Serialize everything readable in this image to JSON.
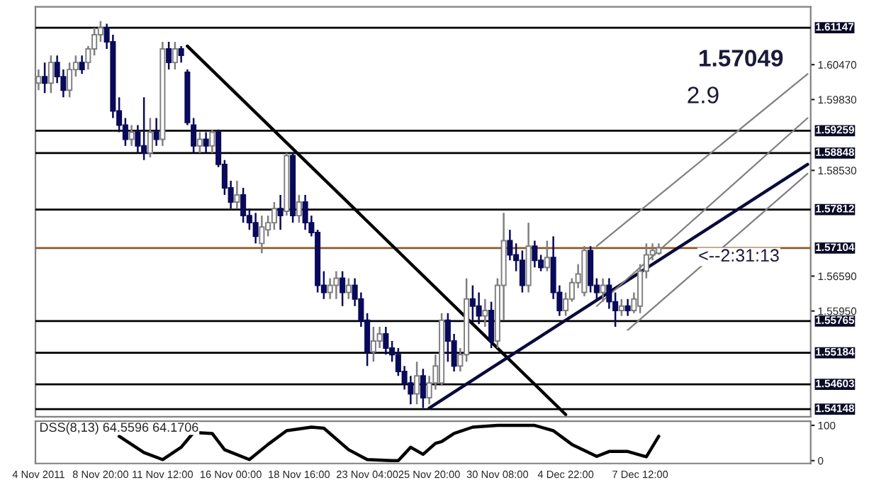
{
  "chart_data": [
    {
      "type": "candlestick",
      "categories": [
        null,
        null,
        null,
        null,
        null,
        null,
        null,
        null,
        null,
        null,
        null,
        null,
        null,
        null,
        null,
        null,
        null,
        null,
        null,
        null,
        null,
        null,
        null,
        null,
        null,
        null,
        null,
        null,
        null,
        null,
        null,
        null,
        null,
        null,
        null,
        null,
        null,
        null,
        null,
        null,
        null,
        null,
        null,
        null,
        null,
        null,
        null,
        null,
        null,
        null,
        null,
        null,
        null,
        null,
        null,
        null,
        null,
        null,
        null,
        null,
        null,
        null,
        null,
        null,
        null,
        null,
        null,
        null,
        null,
        null,
        null,
        null,
        null,
        null,
        null,
        null,
        null,
        null,
        null,
        null,
        null,
        null,
        null,
        null,
        null,
        null,
        null,
        null,
        null,
        null,
        null,
        null,
        null,
        null,
        null,
        null,
        null,
        null,
        null,
        null,
        null,
        null,
        null,
        null,
        null,
        null,
        null,
        null,
        null,
        null,
        null,
        null,
        null,
        null,
        null,
        null,
        null,
        null,
        null,
        null,
        null,
        null,
        null,
        null,
        null
      ],
      "ohlc": [
        [
          1.6013,
          1.6038,
          1.6,
          1.6025
        ],
        [
          1.6025,
          1.6051,
          1.5995,
          1.6013
        ],
        [
          1.6013,
          1.6064,
          1.5995,
          1.6051
        ],
        [
          1.6051,
          1.6064,
          1.6013,
          1.6025
        ],
        [
          1.6025,
          1.6038,
          1.5987,
          1.6
        ],
        [
          1.6,
          1.6051,
          1.5987,
          1.6038
        ],
        [
          1.6038,
          1.6064,
          1.6025,
          1.6051
        ],
        [
          1.6051,
          1.6064,
          1.603,
          1.6038
        ],
        [
          1.6051,
          1.6081,
          1.6038,
          1.6076
        ],
        [
          1.6076,
          1.6115,
          1.6064,
          1.6102
        ],
        [
          1.6102,
          1.6127,
          1.6089,
          1.6115
        ],
        [
          1.6115,
          1.6122,
          1.6076,
          1.6089
        ],
        [
          1.6089,
          1.6102,
          1.5949,
          1.5962
        ],
        [
          1.5962,
          1.5987,
          1.5923,
          1.5936
        ],
        [
          1.5936,
          1.5949,
          1.5898,
          1.591
        ],
        [
          1.591,
          1.5936,
          1.5898,
          1.5923
        ],
        [
          1.5923,
          1.5936,
          1.5885,
          1.5898
        ],
        [
          1.5898,
          1.5987,
          1.5872,
          1.5885
        ],
        [
          1.5885,
          1.5949,
          1.5877,
          1.5923
        ],
        [
          1.5923,
          1.5949,
          1.5898,
          1.591
        ],
        [
          1.591,
          1.6089,
          1.5898,
          1.6076
        ],
        [
          1.6076,
          1.6089,
          1.6038,
          1.6051
        ],
        [
          1.6051,
          1.6089,
          1.6038,
          1.6076
        ],
        [
          1.6076,
          1.6081,
          1.6051,
          1.6064
        ],
        [
          1.6033,
          1.6038,
          1.5936,
          1.5941
        ],
        [
          1.5936,
          1.5949,
          1.5885,
          1.5898
        ],
        [
          1.5898,
          1.5923,
          1.5885,
          1.591
        ],
        [
          1.591,
          1.5923,
          1.5885,
          1.5898
        ],
        [
          1.5898,
          1.5928,
          1.5885,
          1.5923
        ],
        [
          1.5923,
          1.5928,
          1.5859,
          1.5864
        ],
        [
          1.5864,
          1.5872,
          1.5808,
          1.5821
        ],
        [
          1.5821,
          1.5834,
          1.5783,
          1.5795
        ],
        [
          1.5795,
          1.5834,
          1.5783,
          1.5808
        ],
        [
          1.5808,
          1.5821,
          1.5757,
          1.577
        ],
        [
          1.577,
          1.5783,
          1.5744,
          1.5757
        ],
        [
          1.5757,
          1.5775,
          1.5719,
          1.5732
        ],
        [
          1.5719,
          1.577,
          1.5701,
          1.5749
        ],
        [
          1.5744,
          1.577,
          1.5732,
          1.5757
        ],
        [
          1.5757,
          1.5795,
          1.5744,
          1.5783
        ],
        [
          1.5783,
          1.5808,
          1.5744,
          1.577
        ],
        [
          1.5778,
          1.5885,
          1.577,
          1.588
        ],
        [
          1.588,
          1.5885,
          1.5757,
          1.577
        ],
        [
          1.577,
          1.5808,
          1.5757,
          1.5795
        ],
        [
          1.5795,
          1.5808,
          1.5744,
          1.5757
        ],
        [
          1.5757,
          1.577,
          1.5732,
          1.5739
        ],
        [
          1.5739,
          1.5744,
          1.5629,
          1.5642
        ],
        [
          1.5642,
          1.5668,
          1.5617,
          1.5629
        ],
        [
          1.5629,
          1.5655,
          1.5617,
          1.5642
        ],
        [
          1.5642,
          1.5668,
          1.5617,
          1.5655
        ],
        [
          1.5655,
          1.5668,
          1.5604,
          1.5629
        ],
        [
          1.5629,
          1.5655,
          1.5617,
          1.5642
        ],
        [
          1.5642,
          1.5655,
          1.5604,
          1.5617
        ],
        [
          1.5617,
          1.5629,
          1.5566,
          1.5578
        ],
        [
          1.5578,
          1.5591,
          1.5494,
          1.552
        ],
        [
          1.552,
          1.5566,
          1.5502,
          1.554
        ],
        [
          1.554,
          1.5566,
          1.5527,
          1.5553
        ],
        [
          1.5553,
          1.5566,
          1.5515,
          1.5527
        ],
        [
          1.5527,
          1.554,
          1.5502,
          1.5515
        ],
        [
          1.5515,
          1.5527,
          1.5476,
          1.5484
        ],
        [
          1.5484,
          1.5494,
          1.5451,
          1.5463
        ],
        [
          1.5463,
          1.5476,
          1.5424,
          1.5443
        ],
        [
          1.5443,
          1.5502,
          1.5424,
          1.5476
        ],
        [
          1.5476,
          1.5489,
          1.5417,
          1.5436
        ],
        [
          1.5436,
          1.5476,
          1.5424,
          1.5463
        ],
        [
          1.5463,
          1.5515,
          1.5451,
          1.5494
        ],
        [
          1.5463,
          1.5591,
          1.5458,
          1.5578
        ],
        [
          1.5578,
          1.5591,
          1.5502,
          1.554
        ],
        [
          1.554,
          1.5553,
          1.5484,
          1.5494
        ],
        [
          1.5494,
          1.5527,
          1.5484,
          1.5515
        ],
        [
          1.5515,
          1.5655,
          1.5502,
          1.5617
        ],
        [
          1.5617,
          1.5642,
          1.5578,
          1.5604
        ],
        [
          1.5604,
          1.5629,
          1.5571,
          1.5586
        ],
        [
          1.5586,
          1.5617,
          1.5566,
          1.5596
        ],
        [
          1.5596,
          1.5612,
          1.5527,
          1.554
        ],
        [
          1.554,
          1.5655,
          1.5527,
          1.5642
        ],
        [
          1.5642,
          1.5775,
          1.5578,
          1.5724
        ],
        [
          1.5724,
          1.5744,
          1.5688,
          1.5698
        ],
        [
          1.5698,
          1.5719,
          1.5668,
          1.5688
        ],
        [
          1.5688,
          1.5706,
          1.5629,
          1.5642
        ],
        [
          1.5642,
          1.5757,
          1.5629,
          1.5714
        ],
        [
          1.5714,
          1.5724,
          1.5675,
          1.5688
        ],
        [
          1.5688,
          1.5698,
          1.5668,
          1.5675
        ],
        [
          1.5675,
          1.5724,
          1.5668,
          1.5693
        ],
        [
          1.5693,
          1.5732,
          1.5617,
          1.5629
        ],
        [
          1.5629,
          1.5642,
          1.5586,
          1.5596
        ],
        [
          1.5596,
          1.5629,
          1.5586,
          1.5617
        ],
        [
          1.5617,
          1.5655,
          1.5612,
          1.5647
        ],
        [
          1.5647,
          1.5681,
          1.5637,
          1.5663
        ],
        [
          1.5629,
          1.5714,
          1.5622,
          1.5706
        ],
        [
          1.5706,
          1.5714,
          1.5629,
          1.5642
        ],
        [
          1.5642,
          1.5655,
          1.5617,
          1.5629
        ],
        [
          1.5629,
          1.5655,
          1.5612,
          1.5642
        ],
        [
          1.5642,
          1.5655,
          1.5599,
          1.5612
        ],
        [
          1.5612,
          1.5629,
          1.5566,
          1.5596
        ],
        [
          1.5596,
          1.5617,
          1.5586,
          1.5604
        ],
        [
          1.5604,
          1.5617,
          1.5586,
          1.5596
        ],
        [
          1.5596,
          1.5629,
          1.5591,
          1.5617
        ],
        [
          1.5604,
          1.5681,
          1.5591,
          1.5668
        ],
        [
          1.5668,
          1.5719,
          1.5655,
          1.5698
        ],
        [
          1.5698,
          1.5719,
          1.5688,
          1.5706
        ],
        [
          1.5701,
          1.5719,
          1.5698,
          1.5711
        ],
        null,
        null,
        null,
        null,
        null,
        null,
        null,
        null,
        null,
        null,
        null,
        null,
        null,
        null,
        null,
        null,
        null,
        null,
        null,
        null,
        null,
        null,
        null,
        null
      ],
      "series": [
        {
          "type": "line",
          "color": "#000000",
          "values": [
            null,
            null,
            null,
            null,
            null,
            null,
            null,
            null,
            null,
            null,
            null,
            null,
            null,
            null,
            null,
            null,
            null,
            null,
            null,
            null,
            null,
            null,
            null,
            null,
            1.6081,
            null,
            null,
            null,
            null,
            null,
            null,
            null,
            null,
            null,
            null,
            null,
            null,
            null,
            null,
            null,
            null,
            null,
            null,
            null,
            null,
            null,
            null,
            null,
            null,
            null,
            null,
            null,
            null,
            null,
            null,
            null,
            null,
            null,
            null,
            null,
            null,
            null,
            null,
            null,
            null,
            null,
            null,
            null,
            null,
            null,
            null,
            null,
            null,
            null,
            null,
            null,
            null,
            null,
            null,
            null,
            null,
            null,
            null,
            null,
            null,
            1.5405,
            null,
            null,
            null,
            null,
            null,
            null,
            null,
            null,
            null,
            null,
            null,
            null,
            null,
            null,
            null,
            null,
            null,
            null,
            null,
            null,
            null,
            null,
            null,
            null,
            null,
            null,
            null,
            null,
            null,
            null,
            null,
            null,
            null,
            null,
            null,
            null,
            null,
            null,
            null
          ]
        },
        {
          "type": "line",
          "color": "#0a0a3c",
          "values": [
            null,
            null,
            null,
            null,
            null,
            null,
            null,
            null,
            null,
            null,
            null,
            null,
            null,
            null,
            null,
            null,
            null,
            null,
            null,
            null,
            null,
            null,
            null,
            null,
            null,
            null,
            null,
            null,
            null,
            null,
            null,
            null,
            null,
            null,
            null,
            null,
            null,
            null,
            null,
            null,
            null,
            null,
            null,
            null,
            null,
            null,
            null,
            null,
            null,
            null,
            null,
            null,
            null,
            null,
            null,
            null,
            null,
            null,
            null,
            null,
            null,
            null,
            null,
            1.5417,
            null,
            null,
            null,
            null,
            null,
            null,
            null,
            null,
            null,
            null,
            null,
            null,
            null,
            null,
            null,
            null,
            null,
            null,
            null,
            null,
            null,
            null,
            null,
            null,
            null,
            null,
            null,
            null,
            null,
            null,
            null,
            null,
            null,
            null,
            null,
            null,
            null,
            null,
            null,
            null,
            null,
            null,
            null,
            null,
            null,
            null,
            null,
            null,
            null,
            null,
            null,
            null,
            null,
            null,
            null,
            null,
            null,
            null,
            null,
            null,
            1.5864
          ]
        },
        {
          "type": "line",
          "color": "#808080",
          "values": [
            null,
            null,
            null,
            null,
            null,
            null,
            null,
            null,
            null,
            null,
            null,
            null,
            null,
            null,
            null,
            null,
            null,
            null,
            null,
            null,
            null,
            null,
            null,
            null,
            null,
            null,
            null,
            null,
            null,
            null,
            null,
            null,
            null,
            null,
            null,
            null,
            null,
            null,
            null,
            null,
            null,
            null,
            null,
            null,
            null,
            null,
            null,
            null,
            null,
            null,
            null,
            null,
            null,
            null,
            null,
            null,
            null,
            null,
            null,
            null,
            null,
            null,
            null,
            null,
            null,
            null,
            null,
            null,
            null,
            null,
            null,
            null,
            null,
            null,
            null,
            null,
            null,
            null,
            null,
            null,
            null,
            null,
            null,
            null,
            null,
            null,
            null,
            null,
            null,
            null,
            1.5714,
            null,
            null,
            null,
            null,
            null,
            null,
            null,
            null,
            null,
            null,
            null,
            null,
            null,
            null,
            null,
            null,
            null,
            null,
            null,
            null,
            null,
            null,
            null,
            null,
            null,
            null,
            null,
            null,
            null,
            null,
            null,
            null,
            null,
            1.603
          ]
        },
        {
          "type": "line",
          "color": "#808080",
          "values": [
            null,
            null,
            null,
            null,
            null,
            null,
            null,
            null,
            null,
            null,
            null,
            null,
            null,
            null,
            null,
            null,
            null,
            null,
            null,
            null,
            null,
            null,
            null,
            null,
            null,
            null,
            null,
            null,
            null,
            null,
            null,
            null,
            null,
            null,
            null,
            null,
            null,
            null,
            null,
            null,
            null,
            null,
            null,
            null,
            null,
            null,
            null,
            null,
            null,
            null,
            null,
            null,
            null,
            null,
            null,
            null,
            null,
            null,
            null,
            null,
            null,
            null,
            null,
            null,
            null,
            null,
            null,
            null,
            null,
            null,
            null,
            null,
            null,
            null,
            null,
            null,
            null,
            null,
            null,
            null,
            null,
            null,
            null,
            null,
            null,
            null,
            null,
            null,
            null,
            null,
            1.5604,
            null,
            null,
            null,
            null,
            null,
            null,
            null,
            null,
            null,
            null,
            null,
            null,
            null,
            null,
            null,
            null,
            null,
            null,
            null,
            null,
            null,
            null,
            null,
            null,
            null,
            null,
            null,
            null,
            null,
            null,
            null,
            null,
            null,
            1.5949
          ]
        },
        {
          "type": "line",
          "color": "#808080",
          "values": [
            null,
            null,
            null,
            null,
            null,
            null,
            null,
            null,
            null,
            null,
            null,
            null,
            null,
            null,
            null,
            null,
            null,
            null,
            null,
            null,
            null,
            null,
            null,
            null,
            null,
            null,
            null,
            null,
            null,
            null,
            null,
            null,
            null,
            null,
            null,
            null,
            null,
            null,
            null,
            null,
            null,
            null,
            null,
            null,
            null,
            null,
            null,
            null,
            null,
            null,
            null,
            null,
            null,
            null,
            null,
            null,
            null,
            null,
            null,
            null,
            null,
            null,
            null,
            null,
            null,
            null,
            null,
            null,
            null,
            null,
            null,
            null,
            null,
            null,
            null,
            null,
            null,
            null,
            null,
            null,
            null,
            null,
            null,
            null,
            null,
            null,
            null,
            null,
            null,
            null,
            null,
            null,
            null,
            null,
            null,
            1.556,
            null,
            null,
            null,
            null,
            null,
            null,
            null,
            null,
            null,
            null,
            null,
            null,
            null,
            null,
            null,
            null,
            null,
            null,
            null,
            null,
            null,
            null,
            null,
            null,
            null,
            null,
            null,
            null,
            1.5847
          ]
        }
      ],
      "ylim": [
        1.5401,
        1.6153
      ],
      "yticks": [
        {
          "value": 1.6047,
          "label": "1.60470"
        },
        {
          "value": 1.5983,
          "label": "1.59830"
        },
        {
          "value": 1.5853,
          "label": "1.58530"
        },
        {
          "value": 1.5659,
          "label": "1.56590"
        },
        {
          "value": 1.5595,
          "label": "1.55950"
        }
      ],
      "ref_lines": [
        {
          "axis": "y",
          "value": 1.61147,
          "label": "1.61147",
          "color": "#000000"
        },
        {
          "axis": "y",
          "value": 1.59259,
          "label": "1.59259",
          "color": "#000000"
        },
        {
          "axis": "y",
          "value": 1.58848,
          "label": "1.58848",
          "color": "#000000"
        },
        {
          "axis": "y",
          "value": 1.57812,
          "label": "1.57812",
          "color": "#000000"
        },
        {
          "axis": "y",
          "value": 1.57104,
          "label": "1.57104",
          "color": "#8b5a2b"
        },
        {
          "axis": "y",
          "value": 1.55765,
          "label": "1.55765",
          "color": "#000000"
        },
        {
          "axis": "y",
          "value": 1.55184,
          "label": "1.55184",
          "color": "#000000"
        },
        {
          "axis": "y",
          "value": 1.54603,
          "label": "1.54603",
          "color": "#000000"
        },
        {
          "axis": "y",
          "value": 1.54148,
          "label": "1.54148",
          "color": "#000000"
        }
      ],
      "annotations": [
        "1.57049",
        "2.9",
        "<--2:31:13"
      ],
      "tick_labels": "y",
      "grid": false,
      "legend": false
    },
    {
      "type": "line",
      "title": "DSS(8,13) 64.5596 64.1706",
      "categories": [
        "4 Nov 2011",
        null,
        null,
        null,
        null,
        null,
        null,
        null,
        null,
        null,
        "8 Nov 20:00",
        null,
        null,
        null,
        null,
        null,
        null,
        null,
        null,
        null,
        "11 Nov 12:00",
        null,
        null,
        null,
        null,
        null,
        null,
        null,
        null,
        null,
        null,
        "16 Nov 00:00",
        null,
        null,
        null,
        null,
        null,
        null,
        null,
        null,
        null,
        null,
        "18 Nov 16:00",
        null,
        null,
        null,
        null,
        null,
        null,
        null,
        null,
        null,
        null,
        "23 Nov 04:00",
        null,
        null,
        null,
        null,
        null,
        null,
        null,
        null,
        null,
        "25 Nov 20:00",
        null,
        null,
        null,
        null,
        null,
        null,
        null,
        null,
        null,
        null,
        "30 Nov 08:00",
        null,
        null,
        null,
        null,
        null,
        null,
        null,
        null,
        null,
        null,
        "4 Dec 22:00",
        null,
        null,
        null,
        null,
        null,
        null,
        null,
        null,
        null,
        null,
        null,
        "7 Dec 12:00",
        null,
        null,
        null,
        null,
        null,
        null,
        null,
        null,
        null,
        null,
        null,
        null,
        null,
        null,
        null,
        null,
        null,
        null,
        null,
        null,
        null,
        null,
        null,
        null,
        null,
        null,
        null
      ],
      "series": [
        {
          "color": "#000000",
          "values": [
            null,
            null,
            null,
            null,
            null,
            null,
            null,
            null,
            null,
            null,
            null,
            null,
            null,
            69,
            null,
            null,
            null,
            23,
            null,
            null,
            3,
            null,
            null,
            38,
            null,
            80,
            null,
            null,
            77,
            null,
            31,
            null,
            null,
            null,
            3,
            null,
            null,
            46,
            null,
            null,
            85,
            null,
            null,
            null,
            95,
            null,
            92,
            null,
            null,
            null,
            31,
            null,
            null,
            3,
            null,
            null,
            null,
            0,
            0,
            null,
            38,
            null,
            18,
            null,
            49,
            54,
            null,
            77,
            null,
            null,
            95,
            null,
            null,
            null,
            100,
            null,
            null,
            100,
            null,
            null,
            100,
            null,
            null,
            85,
            null,
            null,
            46,
            null,
            null,
            null,
            12,
            null,
            26,
            null,
            null,
            26,
            null,
            null,
            11,
            null,
            69,
            null,
            null,
            null,
            null,
            null,
            null,
            null,
            null,
            null,
            null,
            null,
            null,
            null,
            null,
            null,
            null,
            null,
            null,
            null,
            null,
            null,
            null,
            null,
            null
          ]
        }
      ],
      "ylim": [
        -8,
        112
      ],
      "yticks": [
        100,
        0
      ],
      "grid": false,
      "legend": false
    }
  ]
}
